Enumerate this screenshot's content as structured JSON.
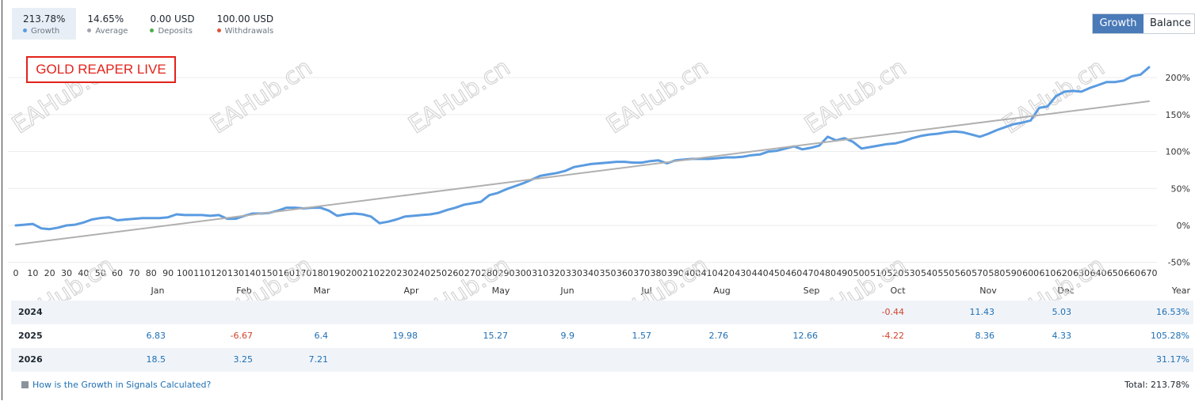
{
  "stats": [
    {
      "value": "213.78%",
      "label": "Growth",
      "color": "#5a9be0"
    },
    {
      "value": "14.65%",
      "label": "Average",
      "color": "#a0a6ad"
    },
    {
      "value": "0.00 USD",
      "label": "Deposits",
      "color": "#4cae4c"
    },
    {
      "value": "100.00 USD",
      "label": "Withdrawals",
      "color": "#e2543a"
    }
  ],
  "toggle": {
    "growth": "Growth",
    "balance": "Balance"
  },
  "overlay_label": "GOLD REAPER LIVE",
  "watermark": "EAHub.cn",
  "colors": {
    "line": "#5a9be0",
    "trend": "#b0b0b0",
    "positive": "#1e6fb3",
    "negative": "#d0442d",
    "accent": "#4a7ab8"
  },
  "chart_data": {
    "type": "line",
    "x_ticks": [
      0,
      10,
      20,
      30,
      40,
      50,
      60,
      70,
      80,
      90,
      100,
      110,
      120,
      130,
      140,
      150,
      160,
      170,
      180,
      190,
      200,
      210,
      220,
      230,
      240,
      250,
      260,
      270,
      280,
      290,
      300,
      310,
      320,
      330,
      340,
      350,
      360,
      370,
      380,
      390,
      400,
      410,
      420,
      430,
      440,
      450,
      460,
      470,
      480,
      490,
      500,
      510,
      520,
      530,
      540,
      550,
      560,
      570,
      580,
      590,
      600,
      610,
      620,
      630,
      640,
      650,
      660,
      670
    ],
    "y_ticks": [
      200,
      150,
      100,
      50,
      0,
      -50
    ],
    "y_tick_labels": [
      "200%",
      "150%",
      "100%",
      "50%",
      "0%",
      "-50%"
    ],
    "xlim": [
      0,
      670
    ],
    "ylim": [
      -50,
      225
    ],
    "months": [
      "Jan",
      "Feb",
      "Mar",
      "Apr",
      "May",
      "Jun",
      "Jul",
      "Aug",
      "Sep",
      "Oct",
      "Nov",
      "Dec"
    ],
    "month_header_right": "Year",
    "series": [
      {
        "role": "growth",
        "points": [
          [
            0,
            0
          ],
          [
            5,
            1
          ],
          [
            10,
            2
          ],
          [
            15,
            -4
          ],
          [
            20,
            -5
          ],
          [
            25,
            -3
          ],
          [
            30,
            0
          ],
          [
            35,
            1
          ],
          [
            40,
            4
          ],
          [
            45,
            8
          ],
          [
            50,
            10
          ],
          [
            55,
            11
          ],
          [
            60,
            7
          ],
          [
            65,
            8
          ],
          [
            70,
            9
          ],
          [
            75,
            10
          ],
          [
            80,
            10
          ],
          [
            85,
            10
          ],
          [
            90,
            11
          ],
          [
            95,
            15
          ],
          [
            100,
            14
          ],
          [
            105,
            14
          ],
          [
            110,
            14
          ],
          [
            115,
            13
          ],
          [
            120,
            14
          ],
          [
            125,
            9
          ],
          [
            130,
            9
          ],
          [
            135,
            13
          ],
          [
            140,
            16
          ],
          [
            145,
            16
          ],
          [
            150,
            17
          ],
          [
            155,
            20
          ],
          [
            160,
            24
          ],
          [
            165,
            24
          ],
          [
            170,
            23
          ],
          [
            175,
            24
          ],
          [
            180,
            24
          ],
          [
            185,
            20
          ],
          [
            190,
            13
          ],
          [
            195,
            15
          ],
          [
            200,
            16
          ],
          [
            205,
            15
          ],
          [
            210,
            12
          ],
          [
            215,
            3
          ],
          [
            220,
            5
          ],
          [
            225,
            8
          ],
          [
            230,
            12
          ],
          [
            235,
            13
          ],
          [
            240,
            14
          ],
          [
            245,
            15
          ],
          [
            250,
            17
          ],
          [
            255,
            21
          ],
          [
            260,
            24
          ],
          [
            265,
            28
          ],
          [
            270,
            30
          ],
          [
            275,
            32
          ],
          [
            280,
            41
          ],
          [
            285,
            44
          ],
          [
            290,
            49
          ],
          [
            295,
            53
          ],
          [
            300,
            57
          ],
          [
            305,
            62
          ],
          [
            310,
            67
          ],
          [
            315,
            69
          ],
          [
            320,
            71
          ],
          [
            325,
            74
          ],
          [
            330,
            79
          ],
          [
            335,
            81
          ],
          [
            340,
            83
          ],
          [
            345,
            84
          ],
          [
            350,
            85
          ],
          [
            355,
            86
          ],
          [
            360,
            86
          ],
          [
            365,
            85
          ],
          [
            370,
            85
          ],
          [
            375,
            87
          ],
          [
            380,
            88
          ],
          [
            385,
            84
          ],
          [
            390,
            88
          ],
          [
            395,
            89
          ],
          [
            400,
            90
          ],
          [
            405,
            90
          ],
          [
            410,
            90
          ],
          [
            415,
            91
          ],
          [
            420,
            92
          ],
          [
            425,
            92
          ],
          [
            430,
            93
          ],
          [
            435,
            95
          ],
          [
            440,
            96
          ],
          [
            445,
            100
          ],
          [
            450,
            101
          ],
          [
            455,
            104
          ],
          [
            460,
            107
          ],
          [
            465,
            103
          ],
          [
            470,
            105
          ],
          [
            475,
            108
          ],
          [
            480,
            120
          ],
          [
            485,
            115
          ],
          [
            490,
            118
          ],
          [
            495,
            113
          ],
          [
            500,
            104
          ],
          [
            505,
            106
          ],
          [
            510,
            108
          ],
          [
            515,
            110
          ],
          [
            520,
            111
          ],
          [
            525,
            114
          ],
          [
            530,
            118
          ],
          [
            535,
            121
          ],
          [
            540,
            123
          ],
          [
            545,
            124
          ],
          [
            550,
            126
          ],
          [
            555,
            127
          ],
          [
            560,
            126
          ],
          [
            565,
            123
          ],
          [
            570,
            120
          ],
          [
            575,
            124
          ],
          [
            580,
            129
          ],
          [
            585,
            133
          ],
          [
            590,
            137
          ],
          [
            595,
            139
          ],
          [
            600,
            142
          ],
          [
            605,
            159
          ],
          [
            610,
            161
          ],
          [
            615,
            175
          ],
          [
            620,
            181
          ],
          [
            625,
            182
          ],
          [
            630,
            181
          ],
          [
            635,
            186
          ],
          [
            640,
            190
          ],
          [
            645,
            194
          ],
          [
            650,
            194
          ],
          [
            655,
            196
          ],
          [
            660,
            202
          ],
          [
            665,
            204
          ],
          [
            670,
            214
          ]
        ]
      },
      {
        "role": "average trend",
        "points": [
          [
            0,
            -26
          ],
          [
            670,
            168
          ]
        ]
      }
    ]
  },
  "table": {
    "rows": [
      {
        "year": "2024",
        "cells": [
          "",
          "",
          "",
          "",
          "",
          "",
          "",
          "",
          "",
          "-0.44",
          "11.43",
          "5.03"
        ],
        "total": "16.53%"
      },
      {
        "year": "2025",
        "cells": [
          "6.83",
          "-6.67",
          "6.4",
          "19.98",
          "15.27",
          "9.9",
          "1.57",
          "2.76",
          "12.66",
          "-4.22",
          "8.36",
          "4.33"
        ],
        "total": "105.28%"
      },
      {
        "year": "2026",
        "cells": [
          "18.5",
          "3.25",
          "7.21",
          "",
          "",
          "",
          "",
          "",
          "",
          "",
          "",
          ""
        ],
        "total": "31.17%"
      }
    ]
  },
  "help_link": "How is the Growth in Signals Calculated?",
  "total_label": "Total: 213.78%"
}
